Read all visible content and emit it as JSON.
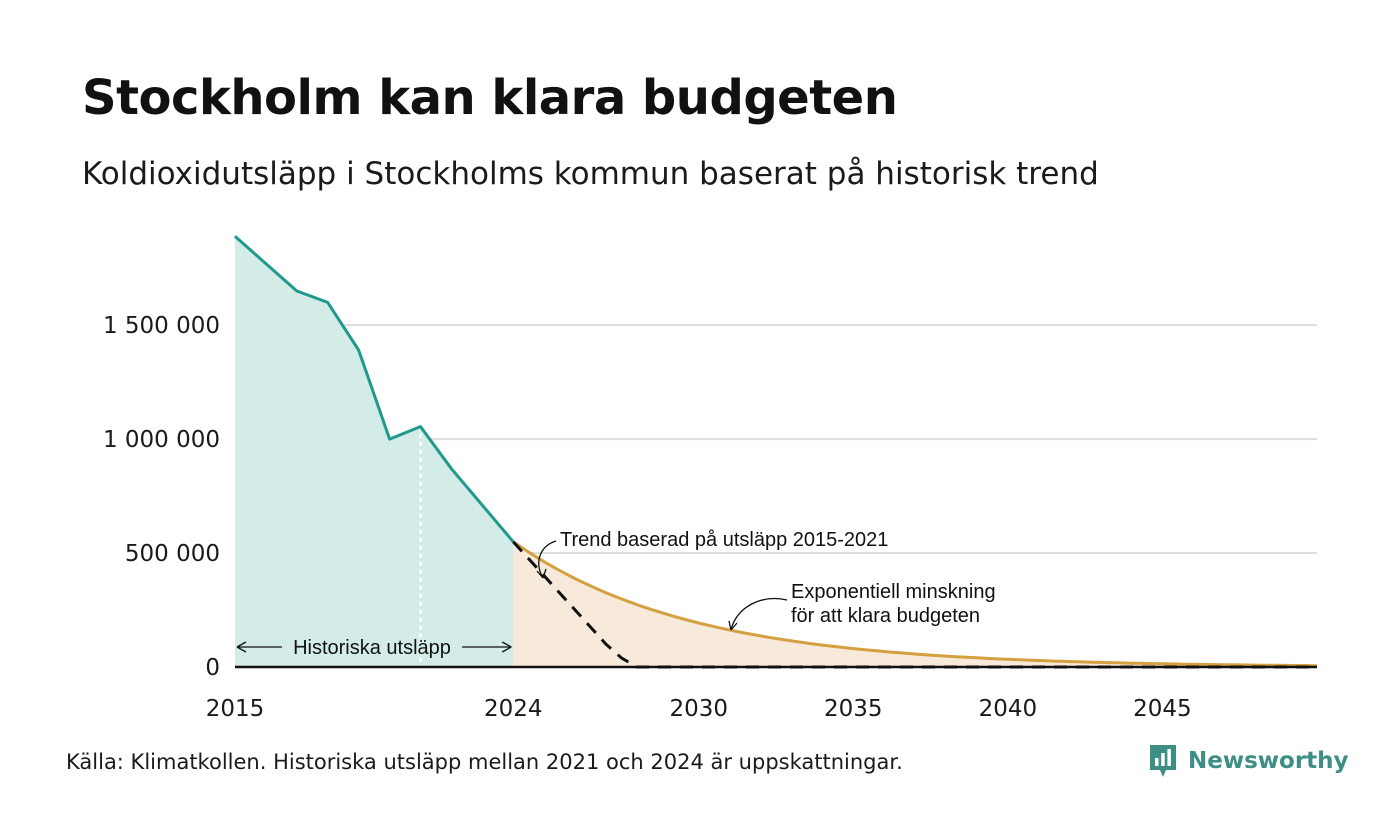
{
  "header": {
    "title": "Stockholm kan klara budgeten",
    "subtitle": "Koldioxidutsläpp i Stockholms kommun baserat på historisk trend"
  },
  "chart_data": {
    "type": "area",
    "x_range": [
      2015,
      2050
    ],
    "y_range": [
      0,
      1900000
    ],
    "y_ticks": [
      0,
      500000,
      1000000,
      1500000
    ],
    "y_tick_labels": [
      "0",
      "500 000",
      "1 000 000",
      "1 500 000"
    ],
    "x_ticks": [
      2015,
      2024,
      2030,
      2035,
      2040,
      2045
    ],
    "x_tick_labels": [
      "2015",
      "2024",
      "2030",
      "2035",
      "2040",
      "2045"
    ],
    "grid": true,
    "colors": {
      "historical_line": "#1f9a8a",
      "historical_fill": "#d3ece7",
      "budget_line": "#d4a040",
      "budget_fill": "#f8eadb",
      "trend_line": "#111111",
      "grid": "#dddddd"
    },
    "series": [
      {
        "key": "historical",
        "x": [
          2015,
          2017,
          2018,
          2019,
          2020,
          2021,
          2022,
          2024
        ],
        "y": [
          1890000,
          1650000,
          1600000,
          1390000,
          1000000,
          1055000,
          870000,
          550000
        ]
      },
      {
        "key": "trend",
        "x": [
          2024,
          2026,
          2027,
          2027.5,
          2028,
          2050
        ],
        "y": [
          550000,
          250000,
          100000,
          40000,
          0,
          0
        ]
      },
      {
        "key": "budget",
        "start_year": 2024,
        "end_year": 2050,
        "start_value": 550000,
        "annual_decay_rate": 0.16
      }
    ],
    "reference_line": {
      "x": 2021
    },
    "annotations": {
      "historical": "Historiska utsläpp",
      "trend": "Trend baserad på utsläpp 2015-2021",
      "budget_line1": "Exponentiell minskning",
      "budget_line2": "för att klara budgeten"
    }
  },
  "footer": {
    "source": "Källa: Klimatkollen. Historiska utsläpp mellan 2021 och 2024 är uppskattningar.",
    "brand": "Newsworthy",
    "brand_icon": "bar-chart-speech-bubble-icon"
  }
}
